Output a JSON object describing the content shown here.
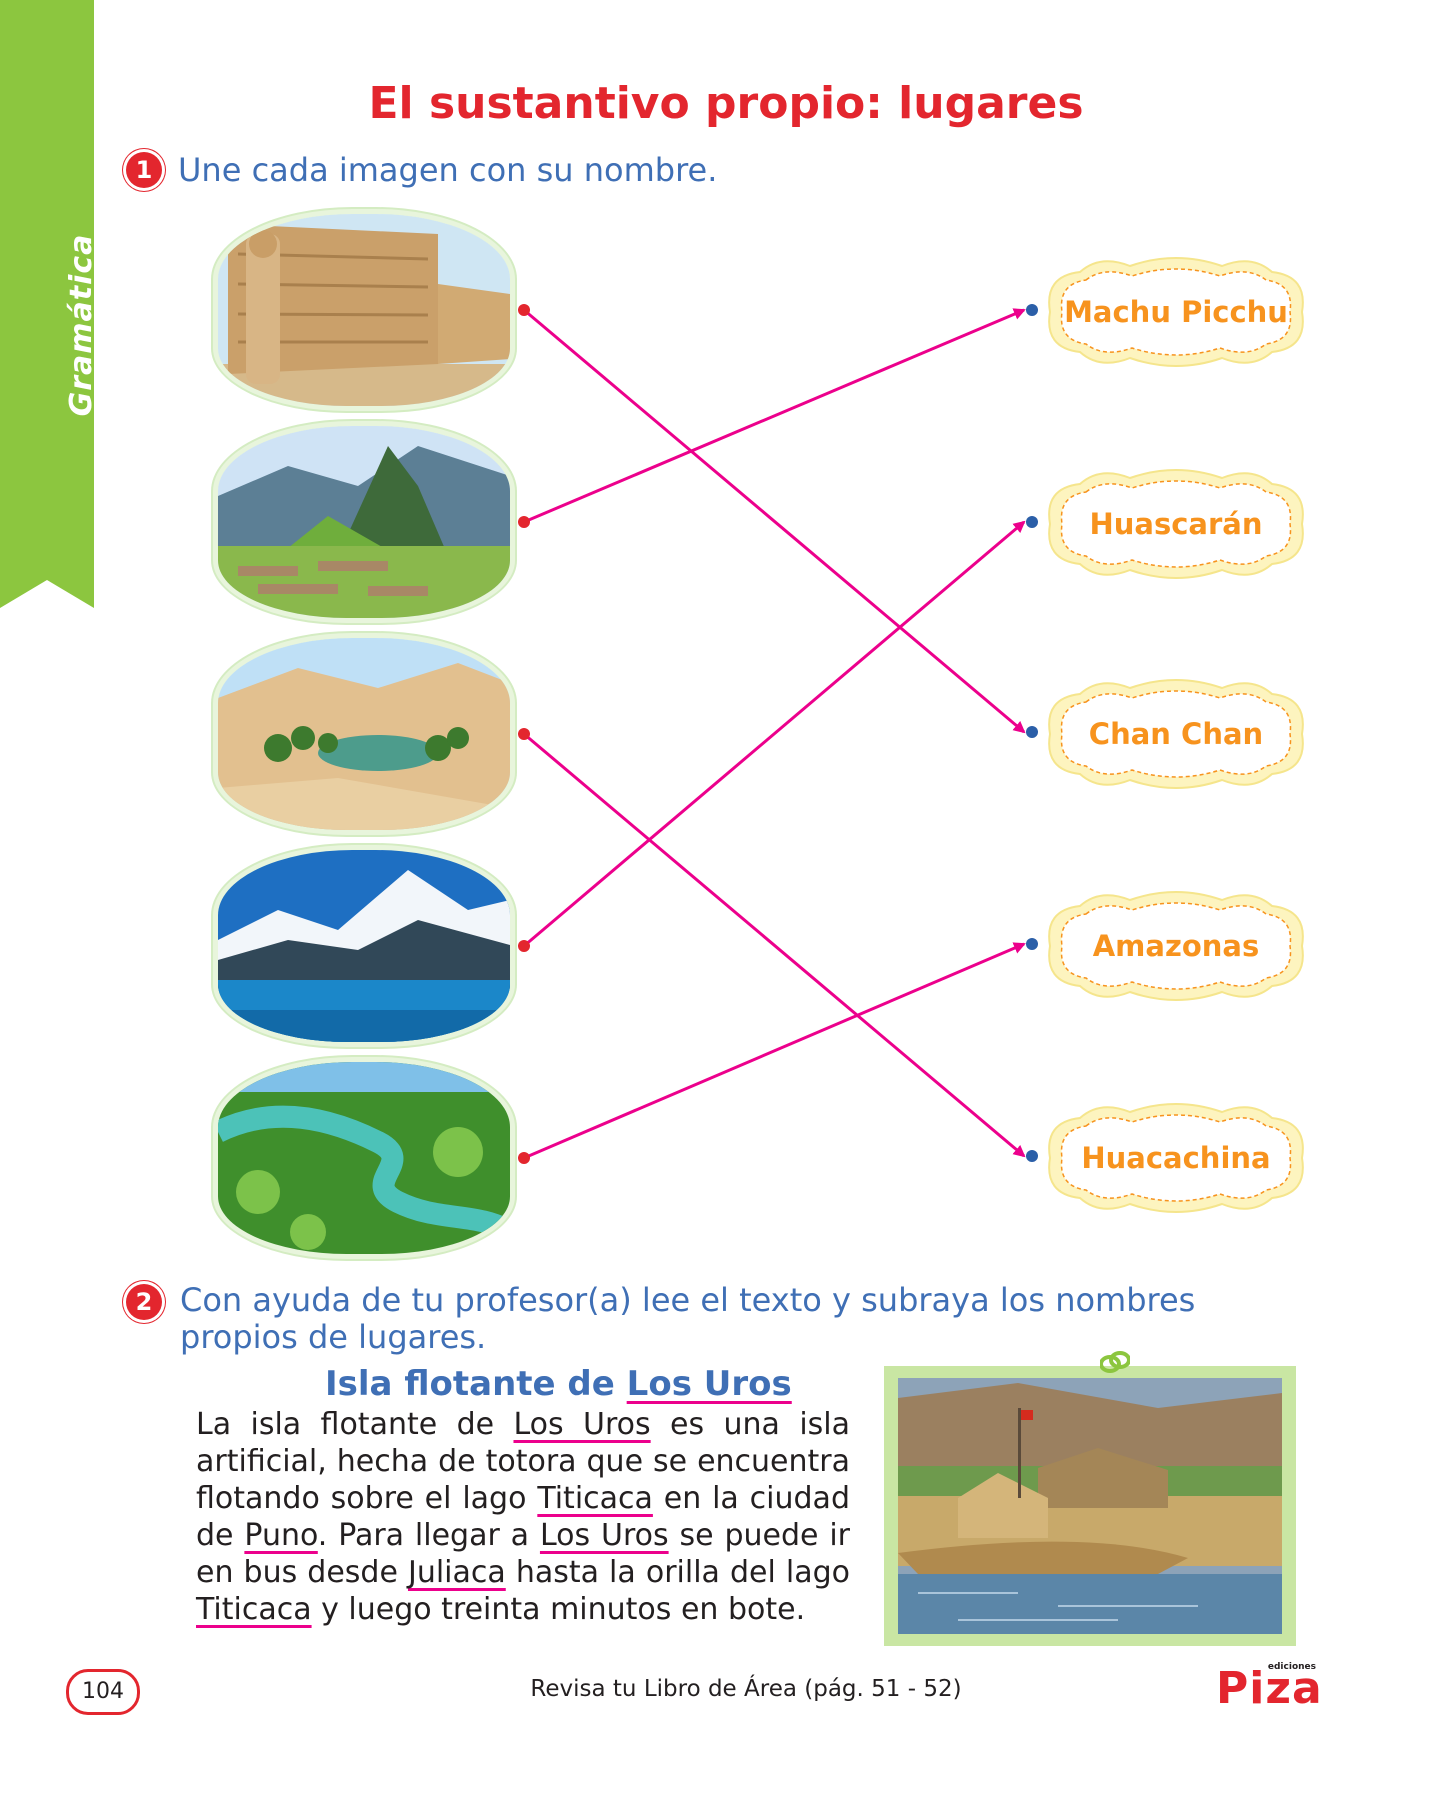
{
  "side_tab": {
    "label": "Gramática"
  },
  "title": "El sustantivo propio: lugares",
  "exercise1": {
    "number": "1",
    "instruction": "Une cada imagen con su nombre.",
    "images": [
      {
        "icon": "chan-chan-photo"
      },
      {
        "icon": "machu-picchu-photo"
      },
      {
        "icon": "huacachina-photo"
      },
      {
        "icon": "huascaran-photo"
      },
      {
        "icon": "amazonas-photo"
      }
    ],
    "names": [
      "Machu Picchu",
      "Huascarán",
      "Chan Chan",
      "Amazonas",
      "Huacachina"
    ],
    "connections": [
      {
        "from_image": 1,
        "to_name": 3
      },
      {
        "from_image": 2,
        "to_name": 1
      },
      {
        "from_image": 3,
        "to_name": 5
      },
      {
        "from_image": 4,
        "to_name": 2
      },
      {
        "from_image": 5,
        "to_name": 4
      }
    ],
    "colors": {
      "line": "#ec008c",
      "start_dot": "#e3262e",
      "end_dot": "#2b5fa8",
      "label": "#f7931e"
    }
  },
  "exercise2": {
    "number": "2",
    "instruction": "Con ayuda de tu profesor(a) lee el texto y subraya los nombres propios de lugares.",
    "story_title_prefix": "Isla flotante de ",
    "story_title_underlined": "Los Uros",
    "story": {
      "t1": "La isla flotante de ",
      "u1": "Los Uros",
      "t2": " es una isla artificial, hecha de totora que se encuentra flotando sobre el lago ",
      "u2": "Titicaca",
      "t3": " en la ciudad de ",
      "u3": "Puno",
      "t4": ". Para llegar a ",
      "u4": "Los Uros",
      "t5": " se puede ir en bus desde ",
      "u5": "Juliaca",
      "t6": " hasta la orilla del lago ",
      "u6": "Titicaca",
      "t7": " y luego treinta minutos en bote."
    },
    "photo_icon": "los-uros-photo"
  },
  "footer": {
    "page_number": "104",
    "reference": "Revisa tu Libro de Área (pág. 51 - 52)",
    "logo_text": "Piza",
    "logo_subtext": "ediciones"
  },
  "colors": {
    "title": "#e3262e",
    "instruction": "#3f6fb5",
    "side_tab": "#8cc63f",
    "underline": "#ec008c"
  }
}
